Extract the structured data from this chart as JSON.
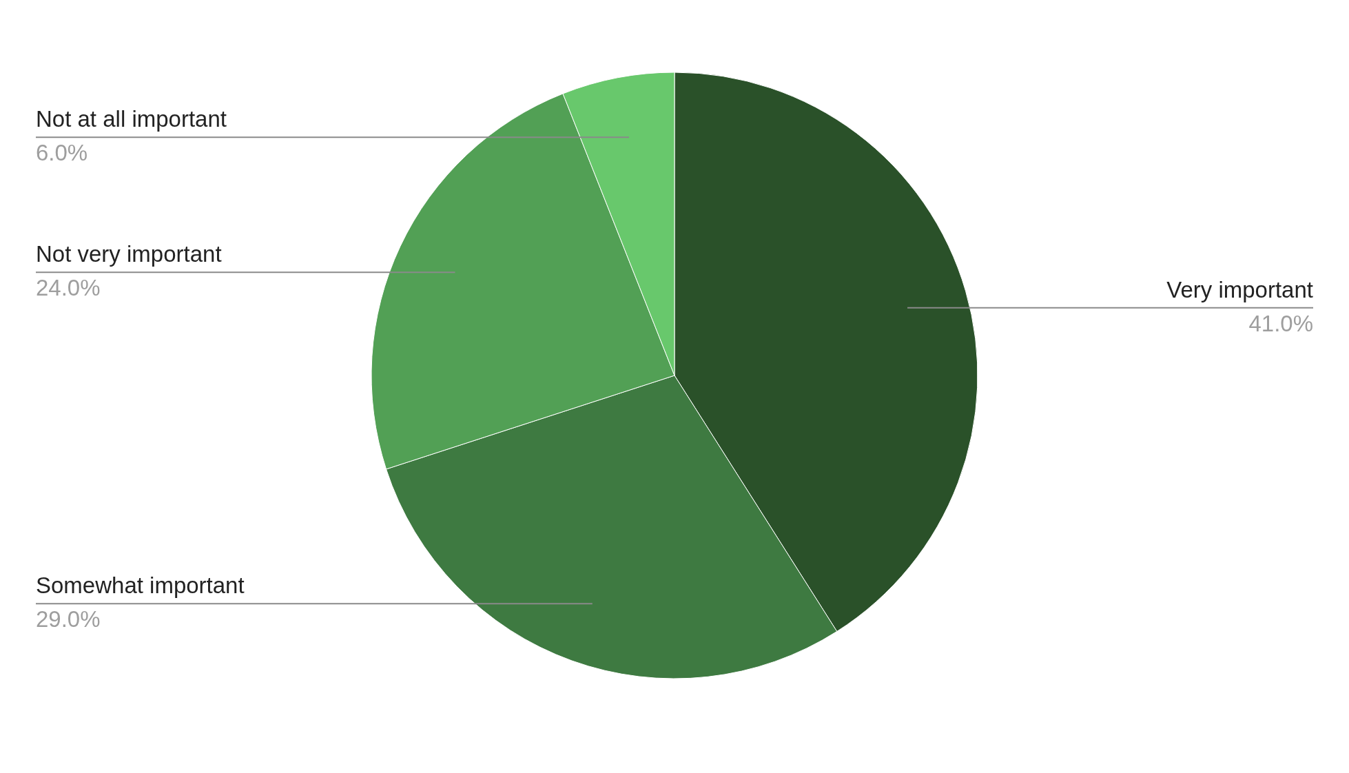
{
  "chart_data": {
    "type": "pie",
    "categories": [
      "Very important",
      "Somewhat important",
      "Not very important",
      "Not at all important"
    ],
    "values": [
      41,
      29,
      24,
      6
    ],
    "colors": [
      "#2a5129",
      "#3e7a41",
      "#52a055",
      "#68c86c"
    ],
    "value_labels": [
      "41.0%",
      "29.0%",
      "24.0%",
      "6.0%"
    ]
  }
}
